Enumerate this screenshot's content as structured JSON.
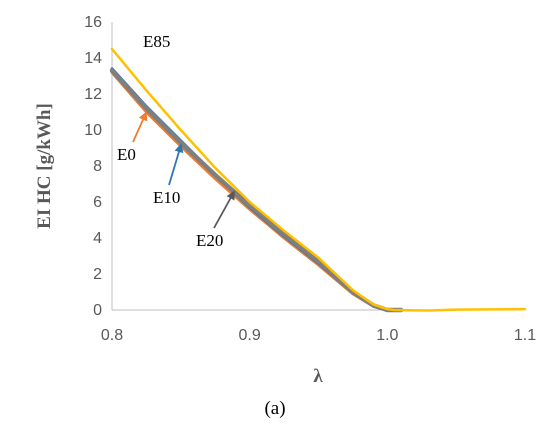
{
  "chart_data": {
    "type": "line",
    "xlabel": "λ",
    "ylabel": "EI HC [g/kWh]",
    "caption": "(a)",
    "xlim": [
      0.8,
      1.1
    ],
    "ylim": [
      0,
      16
    ],
    "xticks": [
      "0.8",
      "0.9",
      "1.0",
      "1.1"
    ],
    "yticks": [
      "0",
      "2",
      "4",
      "6",
      "8",
      "10",
      "12",
      "14",
      "16"
    ],
    "grid": false,
    "legend": "inline labels with arrows",
    "series": [
      {
        "name": "E0",
        "color": "#ED7D31",
        "x": [
          0.8,
          0.825,
          0.85,
          0.875,
          0.9,
          0.925,
          0.95,
          0.975,
          0.99,
          1.0,
          1.01
        ],
        "y": [
          13.2,
          11.0,
          9.1,
          7.3,
          5.6,
          4.0,
          2.5,
          0.9,
          0.2,
          0.0,
          0.0
        ]
      },
      {
        "name": "E10",
        "color": "#2E75B6",
        "x": [
          0.8,
          0.825,
          0.85,
          0.875,
          0.9,
          0.925,
          0.95,
          0.975,
          0.99,
          1.0,
          1.01
        ],
        "y": [
          13.4,
          11.3,
          9.4,
          7.5,
          5.7,
          4.1,
          2.6,
          0.95,
          0.2,
          0.0,
          0.0
        ]
      },
      {
        "name": "E20",
        "color": "#7F7F7F",
        "x": [
          0.8,
          0.825,
          0.85,
          0.875,
          0.9,
          0.925,
          0.95,
          0.975,
          0.99,
          1.0,
          1.01
        ],
        "y": [
          13.3,
          11.2,
          9.3,
          7.5,
          5.8,
          4.2,
          2.7,
          1.0,
          0.25,
          0.0,
          0.0
        ]
      },
      {
        "name": "E85",
        "color": "#FFC000",
        "x": [
          0.8,
          0.825,
          0.85,
          0.875,
          0.9,
          0.925,
          0.95,
          0.975,
          0.99,
          1.0,
          1.005,
          1.02,
          1.03,
          1.05,
          1.1
        ],
        "y": [
          14.5,
          12.2,
          10.0,
          7.9,
          6.0,
          4.4,
          2.9,
          1.1,
          0.3,
          0.05,
          0.0,
          -0.02,
          -0.03,
          0.02,
          0.05
        ]
      }
    ],
    "annotations": [
      {
        "text": "E85",
        "series": "E85"
      },
      {
        "text": "E0",
        "series": "E0",
        "arrow_to": [
          0.826,
          11.0
        ]
      },
      {
        "text": "E10",
        "series": "E10",
        "arrow_to": [
          0.852,
          9.2
        ]
      },
      {
        "text": "E20",
        "series": "E20",
        "arrow_to": [
          0.887,
          6.6
        ]
      }
    ]
  }
}
